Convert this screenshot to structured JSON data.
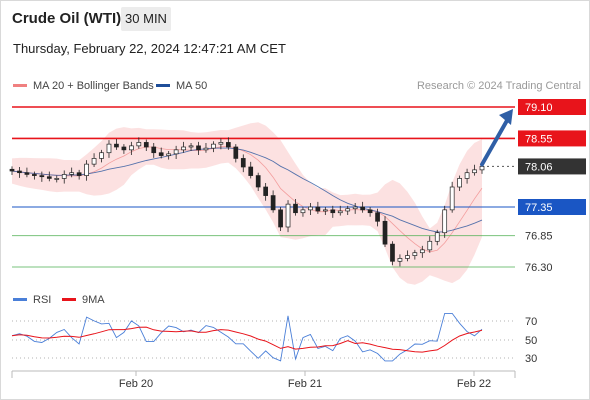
{
  "header": {
    "title": "Crude Oil (WTI)",
    "timeframe": "30 MIN",
    "timestamp": "Thursday, February 22, 2024 12:47:21 AM CET"
  },
  "legend": {
    "ma20_label": "MA 20 + Bollinger Bands",
    "ma20_color": "#f08080",
    "ma50_label": "MA 50",
    "ma50_color": "#1f4e99",
    "credit": "Research © 2024 Trading Central"
  },
  "levels": [
    {
      "value": "79.10",
      "price": 79.1,
      "kind": "resistance",
      "color": "#e8141b"
    },
    {
      "value": "78.55",
      "price": 78.55,
      "kind": "resistance",
      "color": "#e8141b"
    },
    {
      "value": "78.06",
      "price": 78.06,
      "kind": "last",
      "color": "#333333"
    },
    {
      "value": "77.35",
      "price": 77.35,
      "kind": "pivot",
      "color": "#1a56c4"
    },
    {
      "value": "76.85",
      "price": 76.85,
      "kind": "support",
      "color": "#4caf50"
    },
    {
      "value": "76.30",
      "price": 76.3,
      "kind": "support",
      "color": "#4caf50"
    }
  ],
  "rsi_panel": {
    "rsi_label": "RSI",
    "rsi_color": "#4a7fd8",
    "ma_label": "9MA",
    "ma_color": "#e8141b",
    "levels": [
      "70",
      "50",
      "30"
    ]
  },
  "x_axis": {
    "ticks": [
      "Feb 20",
      "Feb 21",
      "Feb 22"
    ]
  },
  "chart_data": {
    "type": "candlestick",
    "price_axis": [
      76.3,
      76.85,
      77.35,
      78.06,
      78.55,
      79.1
    ],
    "close_series_approx": [
      77.98,
      77.95,
      77.92,
      77.9,
      77.88,
      77.85,
      77.85,
      77.92,
      77.95,
      77.9,
      78.1,
      78.2,
      78.3,
      78.45,
      78.4,
      78.35,
      78.42,
      78.48,
      78.4,
      78.3,
      78.25,
      78.28,
      78.35,
      78.4,
      78.42,
      78.35,
      78.38,
      78.45,
      78.48,
      78.4,
      78.2,
      78.05,
      77.9,
      77.7,
      77.55,
      77.3,
      77.0,
      77.4,
      77.25,
      77.3,
      77.35,
      77.28,
      77.3,
      77.25,
      77.28,
      77.32,
      77.35,
      77.3,
      77.25,
      77.1,
      76.7,
      76.4,
      76.45,
      76.5,
      76.55,
      76.6,
      76.75,
      76.9,
      77.3,
      77.7,
      77.85,
      77.95,
      78.0,
      78.06
    ],
    "projection": {
      "from": 78.06,
      "to": 79.1
    }
  }
}
